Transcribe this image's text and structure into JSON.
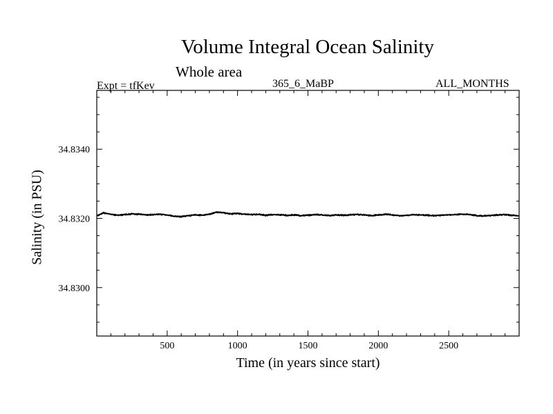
{
  "chart_data": {
    "type": "line",
    "title": "Volume Integral Ocean Salinity",
    "subtitle": "Whole area",
    "annotations": {
      "experiment": "Expt = tfKev",
      "run": "365_6_MaBP",
      "months": "ALL_MONTHS"
    },
    "xlabel": "Time (in years since start)",
    "ylabel": "Salinity (in PSU)",
    "xlim": [
      0,
      3000
    ],
    "ylim": [
      34.8286,
      34.8357
    ],
    "xticks": [
      500,
      1000,
      1500,
      2000,
      2500
    ],
    "xtick_labels": [
      "500",
      "1000",
      "1500",
      "2000",
      "2500"
    ],
    "yticks": [
      34.83,
      34.832,
      34.834
    ],
    "ytick_labels": [
      "34.8300",
      "34.8320",
      "34.8340"
    ],
    "grid": false,
    "series": [
      {
        "color": "#000000",
        "x": [
          0,
          50,
          100,
          150,
          200,
          250,
          300,
          350,
          400,
          450,
          500,
          550,
          600,
          650,
          700,
          750,
          800,
          850,
          900,
          950,
          1000,
          1050,
          1100,
          1150,
          1200,
          1250,
          1300,
          1350,
          1400,
          1450,
          1500,
          1550,
          1600,
          1650,
          1700,
          1750,
          1800,
          1850,
          1900,
          1950,
          2000,
          2050,
          2100,
          2150,
          2200,
          2250,
          2300,
          2350,
          2400,
          2450,
          2500,
          2550,
          2600,
          2650,
          2700,
          2750,
          2800,
          2850,
          2900,
          2950,
          3000
        ],
        "values": [
          34.83208,
          34.83216,
          34.83212,
          34.83209,
          34.83211,
          34.83213,
          34.83212,
          34.8321,
          34.83211,
          34.83212,
          34.8321,
          34.83206,
          34.83205,
          34.83208,
          34.8321,
          34.83209,
          34.83212,
          34.83218,
          34.83216,
          34.83213,
          34.83214,
          34.83212,
          34.83211,
          34.83212,
          34.83209,
          34.83211,
          34.8321,
          34.83209,
          34.8321,
          34.83208,
          34.83209,
          34.83211,
          34.8321,
          34.83208,
          34.8321,
          34.83209,
          34.8321,
          34.83211,
          34.8321,
          34.83208,
          34.8321,
          34.83212,
          34.8321,
          34.83208,
          34.83209,
          34.8321,
          34.8321,
          34.83209,
          34.83208,
          34.83209,
          34.8321,
          34.83211,
          34.83212,
          34.83211,
          34.83208,
          34.83207,
          34.83209,
          34.8321,
          34.83211,
          34.83209,
          34.83207
        ]
      }
    ]
  }
}
